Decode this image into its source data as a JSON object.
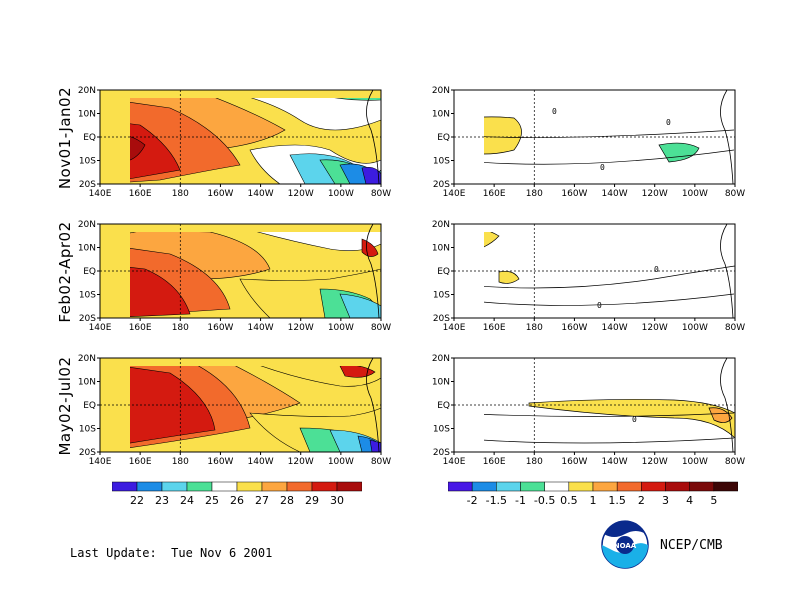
{
  "rows": [
    {
      "label": "Nov01-Jan02"
    },
    {
      "label": "Feb02-Apr02"
    },
    {
      "label": "May02-Jul02"
    }
  ],
  "lat_ticks": [
    "20N",
    "10N",
    "EQ",
    "10S",
    "20S"
  ],
  "lon_ticks": [
    "140E",
    "160E",
    "180",
    "160W",
    "140W",
    "120W",
    "100W",
    "80W"
  ],
  "sst_colorbar": {
    "labels": [
      "22",
      "23",
      "24",
      "25",
      "26",
      "27",
      "28",
      "29",
      "30"
    ],
    "colors": [
      "#3c1ce0",
      "#1c8ce6",
      "#5cd4ec",
      "#4ce096",
      "#ffffff",
      "#fae04c",
      "#fca640",
      "#f26a2c",
      "#d41a10",
      "#a80c0c"
    ]
  },
  "anom_colorbar": {
    "labels": [
      "-2",
      "-1.5",
      "-1",
      "-0.5",
      "0.5",
      "1",
      "1.5",
      "2",
      "3",
      "4",
      "5"
    ],
    "colors": [
      "#4818e6",
      "#1c8ce6",
      "#5cd4ec",
      "#4ce096",
      "#ffffff",
      "#fae04c",
      "#fca640",
      "#f26a2c",
      "#d41a10",
      "#a80c0c",
      "#7a0a0a",
      "#3c0606"
    ]
  },
  "contour_label": "0",
  "footer": {
    "last_update": "Last Update:  Tue Nov 6 2001",
    "credit": "NCEP/CMB",
    "logo_text": "NOAA"
  }
}
